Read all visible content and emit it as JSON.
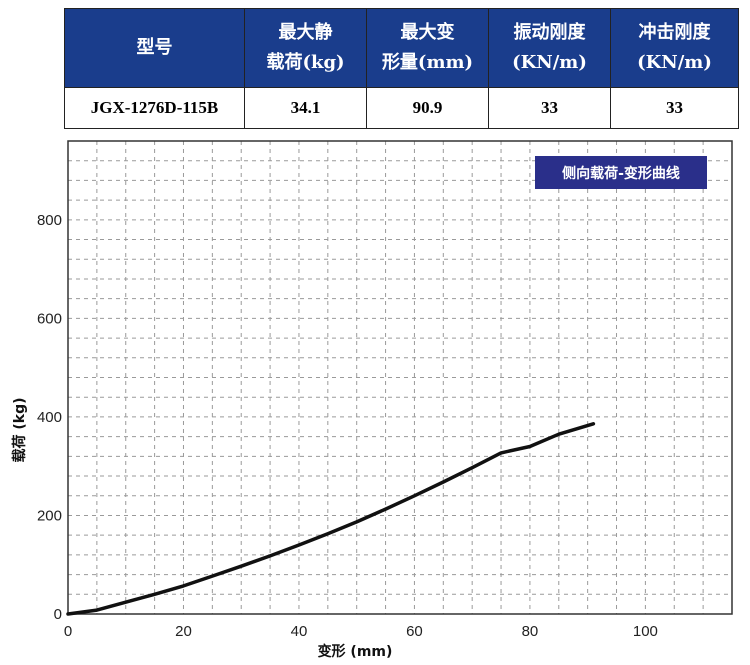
{
  "spec_table": {
    "headers": [
      [
        "型号"
      ],
      [
        "最大静",
        "载荷(kg)"
      ],
      [
        "最大变",
        "形量(mm)"
      ],
      [
        "振动刚度",
        "(KN/m)"
      ],
      [
        "冲击刚度",
        "(KN/m)"
      ]
    ],
    "row": [
      "JGX-1276D-115B",
      "34.1",
      "90.9",
      "33",
      "33"
    ]
  },
  "colors": {
    "header_bg": "#1a3d8c",
    "legend_bg": "#2a2f8a",
    "curve": "#111111",
    "grid": "#9a9a9a"
  },
  "chart_data": {
    "type": "line",
    "title": "侧向载荷-变形曲线",
    "xlabel": "变形 (mm)",
    "ylabel": "载荷 (kg)",
    "xlim": [
      0,
      115
    ],
    "ylim": [
      0,
      960
    ],
    "xticks": [
      0,
      20,
      40,
      60,
      80,
      100
    ],
    "yticks": [
      0,
      200,
      400,
      600,
      800
    ],
    "grid": true,
    "legend_position": "top-right",
    "series": [
      {
        "x": [
          0,
          5,
          10,
          15,
          20,
          25,
          30,
          35,
          40,
          45,
          50,
          55,
          60,
          65,
          70,
          75,
          80,
          85,
          91
        ],
        "values": [
          0,
          8,
          24,
          40,
          57,
          77,
          97,
          118,
          140,
          163,
          187,
          213,
          240,
          268,
          297,
          327,
          340,
          365,
          386
        ]
      }
    ]
  }
}
